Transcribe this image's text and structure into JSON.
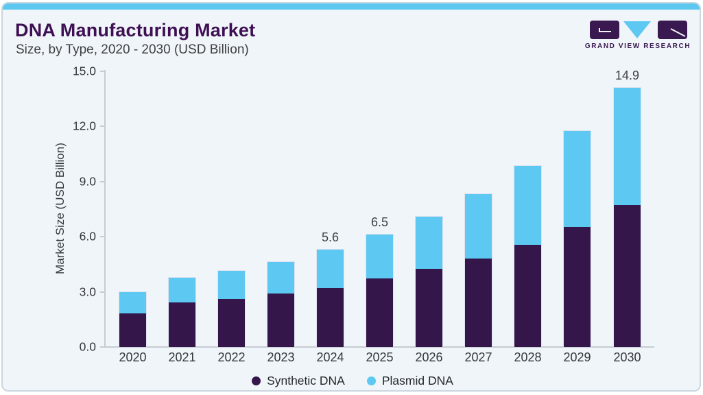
{
  "header": {
    "title": "DNA Manufacturing Market",
    "subtitle": "Size, by Type, 2020 - 2030 (USD Billion)",
    "logo": {
      "brand": "GRAND VIEW RESEARCH"
    }
  },
  "chart_data": {
    "type": "bar",
    "stacked": true,
    "title": "DNA Manufacturing Market Size, by Type, 2020 - 2030 (USD Billion)",
    "categories": [
      "2020",
      "2021",
      "2022",
      "2023",
      "2024",
      "2025",
      "2026",
      "2027",
      "2028",
      "2029",
      "2030"
    ],
    "series": [
      {
        "name": "Synthetic DNA",
        "color": "#34164b",
        "values": [
          2.0,
          2.6,
          2.8,
          3.1,
          3.4,
          4.0,
          4.5,
          5.1,
          5.9,
          6.9,
          8.2
        ]
      },
      {
        "name": "Plasmid DNA",
        "color": "#5dc9f2",
        "values": [
          1.2,
          1.4,
          1.6,
          1.8,
          2.2,
          2.5,
          3.0,
          3.7,
          4.5,
          5.5,
          6.7
        ]
      }
    ],
    "totals": [
      3.2,
      4.0,
      4.4,
      4.9,
      5.6,
      6.5,
      7.5,
      8.8,
      10.4,
      12.4,
      14.9
    ],
    "bar_labels": [
      "",
      "",
      "",
      "",
      "5.6",
      "6.5",
      "",
      "",
      "",
      "",
      "14.9"
    ],
    "xlabel": "",
    "ylabel": "Market Size (USD Billion)",
    "yticks": [
      "0.0",
      "3.0",
      "6.0",
      "9.0",
      "12.0",
      "15.0"
    ],
    "ylim": [
      0,
      15
    ],
    "grid": false,
    "legend_position": "bottom"
  }
}
